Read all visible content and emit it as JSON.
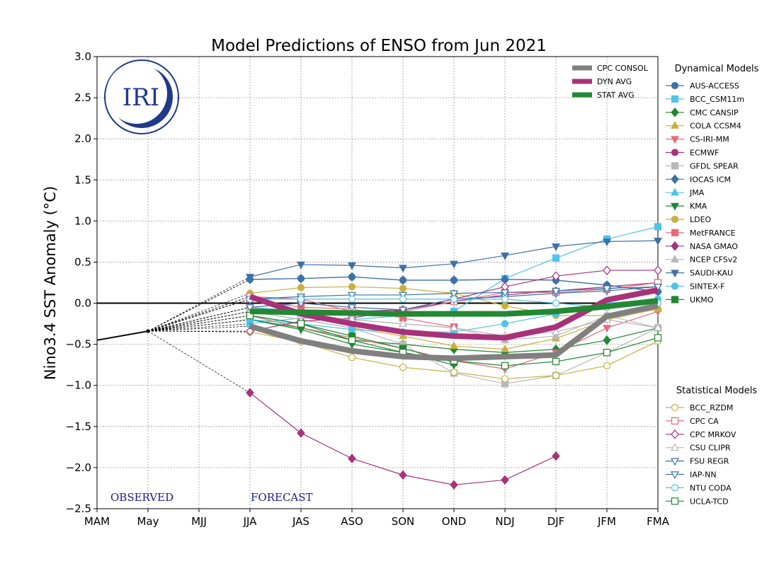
{
  "chart_data": {
    "type": "line",
    "title": "Model Predictions of ENSO from Jun 2021",
    "xlabel": "",
    "ylabel": "Nino3.4 SST Anomaly (°C)",
    "ylim": [
      -2.5,
      3.0
    ],
    "yticks": [
      -2.5,
      -2.0,
      -1.5,
      -1.0,
      -0.5,
      0.0,
      0.5,
      1.0,
      1.5,
      2.0,
      2.5,
      3.0
    ],
    "ytick_labels": [
      "−2.5",
      "−2.0",
      "−1.5",
      "−1.0",
      "−0.5",
      "0.0",
      "0.5",
      "1.0",
      "1.5",
      "2.0",
      "2.5",
      "3.0"
    ],
    "categories": [
      "MAM",
      "May",
      "MJJ",
      "JJA",
      "JAS",
      "ASO",
      "SON",
      "OND",
      "NDJ",
      "DJF",
      "JFM",
      "FMA"
    ],
    "grid": true,
    "observed": {
      "name": "Observed",
      "x": [
        0,
        1
      ],
      "values": [
        -0.45,
        -0.34
      ]
    },
    "text_labels": {
      "observed": "OBSERVED",
      "forecast": "FORECAST",
      "logo": "IRI"
    },
    "legend_headers": {
      "dynamical": "Dynamical Models",
      "statistical": "Statistical Models"
    },
    "averages": [
      {
        "name": "CPC CONSOL",
        "color": "#808080",
        "values": [
          -0.28,
          -0.46,
          -0.58,
          -0.65,
          -0.67,
          -0.65,
          -0.63,
          -0.16,
          -0.03
        ]
      },
      {
        "name": "DYN AVG",
        "color": "#a83279",
        "values": [
          0.08,
          -0.13,
          -0.25,
          -0.35,
          -0.4,
          -0.42,
          -0.29,
          0.04,
          0.16
        ]
      },
      {
        "name": "STAT AVG",
        "color": "#228833",
        "values": [
          -0.1,
          -0.11,
          -0.12,
          -0.13,
          -0.13,
          -0.13,
          -0.1,
          -0.04,
          0.03
        ]
      }
    ],
    "dynamical": [
      {
        "name": "AUS-ACCESS",
        "color": "#3f71a8",
        "marker": "circle",
        "fill": true,
        "values": [
          0.29,
          0.3,
          0.32,
          0.28,
          0.28,
          0.29,
          0.28,
          0.22,
          0.14
        ]
      },
      {
        "name": "BCC_CSM11m",
        "color": "#4fc3e8",
        "marker": "square",
        "fill": true,
        "values": [
          -0.25,
          -0.18,
          -0.2,
          -0.15,
          -0.1,
          0.3,
          0.55,
          0.78,
          0.93
        ]
      },
      {
        "name": "CMC CANSIP",
        "color": "#228833",
        "marker": "diamond",
        "fill": true,
        "values": [
          -0.2,
          -0.3,
          -0.45,
          -0.5,
          -0.56,
          -0.6,
          -0.56,
          -0.45,
          -0.3
        ]
      },
      {
        "name": "COLA CCSM4",
        "color": "#c8b040",
        "marker": "triangle-up",
        "fill": true,
        "values": [
          -0.1,
          -0.2,
          -0.3,
          -0.4,
          -0.52,
          -0.56,
          -0.43,
          -0.2,
          -0.07
        ]
      },
      {
        "name": "CS-IRI-MM",
        "color": "#e8687a",
        "marker": "triangle-down",
        "fill": true,
        "values": [
          -0.15,
          -0.3,
          -0.42,
          -0.55,
          -0.7,
          -0.8,
          -0.6,
          -0.3,
          -0.1
        ]
      },
      {
        "name": "ECMWF",
        "color": "#a83279",
        "marker": "circle",
        "fill": true,
        "values": [
          -0.05,
          -0.1,
          -0.1,
          -0.08,
          0.02,
          0.1,
          0.15,
          0.2,
          0.25
        ]
      },
      {
        "name": "GFDL SPEAR",
        "color": "#b8b8b8",
        "marker": "square",
        "fill": true,
        "values": [
          -0.1,
          -0.2,
          -0.3,
          -0.5,
          -0.85,
          -0.98,
          -0.88,
          -0.6,
          -0.3
        ]
      },
      {
        "name": "IOCAS ICM",
        "color": "#3f71a8",
        "marker": "diamond",
        "fill": true,
        "values": [
          0.29,
          0.3,
          0.32,
          0.28,
          0.28,
          0.29,
          0.28,
          0.22,
          0.14
        ]
      },
      {
        "name": "JMA",
        "color": "#4fc3e8",
        "marker": "triangle-up",
        "fill": true,
        "values": [
          -0.05,
          -0.1,
          -0.1,
          -0.12,
          -0.1
        ]
      },
      {
        "name": "KMA",
        "color": "#228833",
        "marker": "triangle-down",
        "fill": true,
        "values": [
          -0.2,
          -0.32,
          -0.5,
          -0.6,
          -0.75
        ]
      },
      {
        "name": "LDEO",
        "color": "#c8b040",
        "marker": "circle",
        "fill": true,
        "values": [
          0.12,
          0.19,
          0.2,
          0.18,
          0.12,
          -0.03,
          -0.15,
          -0.15,
          -0.07
        ]
      },
      {
        "name": "MetFRANCE",
        "color": "#e8687a",
        "marker": "square",
        "fill": true,
        "values": [
          0.05,
          -0.05,
          -0.07,
          -0.18,
          -0.29
        ]
      },
      {
        "name": "NASA GMAO",
        "color": "#a83279",
        "marker": "diamond",
        "fill": true,
        "values": [
          -1.09,
          -1.58,
          -1.89,
          -2.09,
          -2.21,
          -2.15,
          -1.86
        ]
      },
      {
        "name": "NCEP CFSv2",
        "color": "#b8b8b8",
        "marker": "triangle-up",
        "fill": true,
        "values": [
          -0.05,
          -0.15,
          -0.2,
          -0.25,
          -0.3,
          -0.45,
          -0.4,
          -0.15,
          -0.3
        ]
      },
      {
        "name": "SAUDI-KAU",
        "color": "#3f71a8",
        "marker": "triangle-down",
        "fill": true,
        "values": [
          0.32,
          0.47,
          0.46,
          0.43,
          0.48,
          0.58,
          0.69,
          0.75,
          0.76
        ]
      },
      {
        "name": "SINTEX-F",
        "color": "#4fc3e8",
        "marker": "circle",
        "fill": true,
        "values": [
          -0.2,
          -0.25,
          -0.32,
          -0.35,
          -0.35,
          -0.25,
          -0.13,
          0.0,
          0.05
        ]
      },
      {
        "name": "UKMO",
        "color": "#228833",
        "marker": "square",
        "fill": true,
        "values": [
          -0.15,
          -0.25,
          -0.4,
          -0.55,
          -0.72
        ]
      }
    ],
    "statistical": [
      {
        "name": "BCC_RZDM",
        "color": "#c8b040",
        "marker": "circle",
        "fill": false,
        "values": [
          -0.35,
          -0.47,
          -0.66,
          -0.78,
          -0.84,
          -0.92,
          -0.88,
          -0.76,
          -0.46
        ]
      },
      {
        "name": "CPC CA",
        "color": "#e8687a",
        "marker": "square",
        "fill": false,
        "values": [
          0.08,
          0.05,
          -0.1,
          -0.1,
          0.02,
          0.13,
          0.13,
          0.17,
          0.25
        ]
      },
      {
        "name": "CPC MRKOV",
        "color": "#a83279",
        "marker": "diamond",
        "fill": false,
        "values": [
          -0.34,
          -0.22,
          -0.18,
          -0.08,
          0.05,
          0.2,
          0.33,
          0.4,
          0.4
        ]
      },
      {
        "name": "CSU CLIPR",
        "color": "#b8b8b8",
        "marker": "triangle-up",
        "fill": false,
        "values": [
          -0.1,
          -0.15,
          -0.2,
          -0.25,
          -0.3,
          -0.4,
          -0.35,
          -0.2,
          -0.3
        ]
      },
      {
        "name": "FSU REGR",
        "color": "#3f71a8",
        "marker": "triangle-down",
        "fill": false,
        "values": [
          -0.05,
          0.0,
          -0.05,
          -0.08,
          0.05,
          0.08,
          0.12,
          0.15,
          0.2
        ]
      },
      {
        "name": "IAP-NN",
        "color": "#3f71a8",
        "marker": "triangle-down",
        "fill": false,
        "values": [
          0.05,
          0.08,
          0.1,
          0.1,
          0.12,
          0.13,
          0.15,
          0.18,
          0.2
        ]
      },
      {
        "name": "NTU CODA",
        "color": "#4fc3e8",
        "marker": "circle",
        "fill": false,
        "values": [
          0.05,
          0.05,
          0.05,
          0.05,
          0.05,
          0.05,
          0.0,
          -0.05,
          0.0
        ]
      },
      {
        "name": "UCLA-TCD",
        "color": "#228833",
        "marker": "square",
        "fill": false,
        "values": [
          -0.15,
          -0.25,
          -0.45,
          -0.6,
          -0.7,
          -0.76,
          -0.71,
          -0.6,
          -0.42
        ]
      }
    ]
  }
}
